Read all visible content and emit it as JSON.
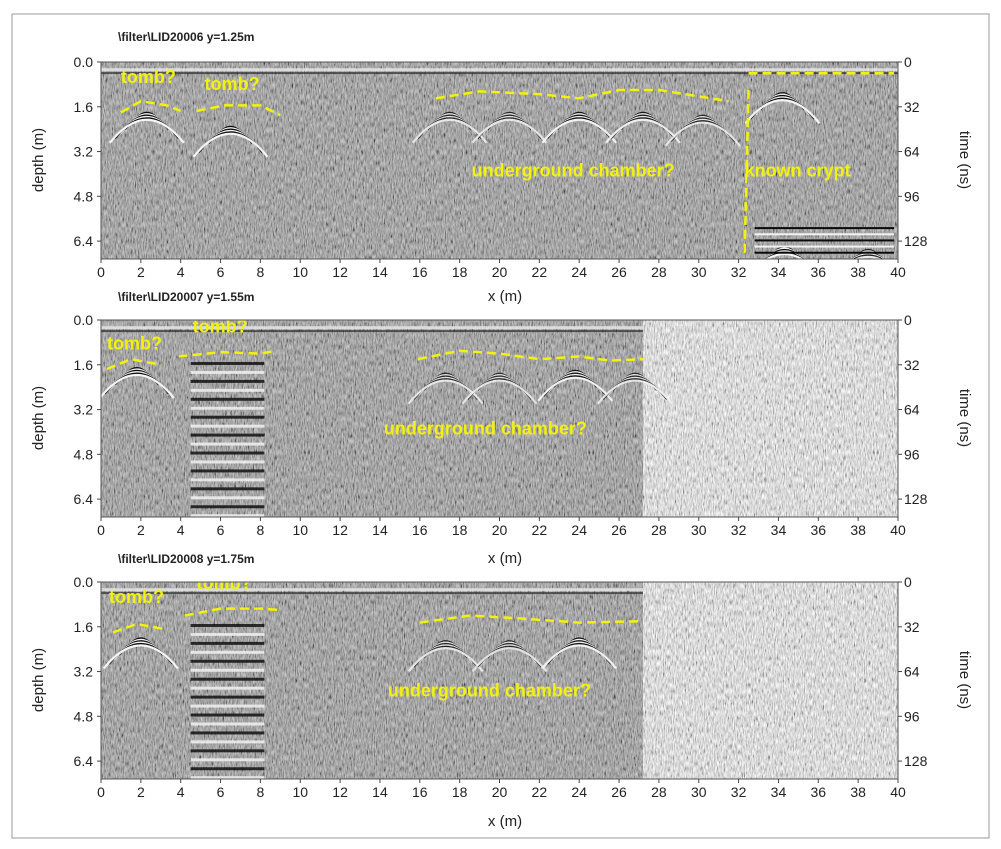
{
  "chart_data": [
    {
      "type": "heatmap",
      "title": "\\filter\\LID20006 y=1.25m",
      "xlabel": "x (m)",
      "ylabel": "depth (m)",
      "y2label": "time (ns)",
      "xlim": [
        0,
        40
      ],
      "ylim": [
        0,
        7.04
      ],
      "x_ticks": [
        "0",
        "2",
        "4",
        "6",
        "8",
        "10",
        "12",
        "14",
        "16",
        "18",
        "20",
        "22",
        "24",
        "26",
        "28",
        "30",
        "32",
        "34",
        "36",
        "38",
        "40"
      ],
      "y_ticks": [
        "0.0",
        "1.6",
        "3.2",
        "4.8",
        "6.4"
      ],
      "y2_ticks": [
        "0",
        "32",
        "64",
        "96",
        "128"
      ],
      "data_extent_x": 40,
      "annotations": [
        {
          "text": "tomb?",
          "x": 1.0,
          "depth": 0.75
        },
        {
          "text": "tomb?",
          "x": 5.2,
          "depth": 1.0
        },
        {
          "text": "underground chamber?",
          "x": 18.6,
          "depth": 4.1
        },
        {
          "text": "known crypt",
          "x": 32.3,
          "depth": 4.1
        }
      ],
      "interpretation_lines": [
        {
          "name": "tomb-1-outline",
          "points": [
            [
              1.0,
              1.8
            ],
            [
              2.0,
              1.4
            ],
            [
              3.3,
              1.55
            ],
            [
              4.0,
              1.75
            ]
          ]
        },
        {
          "name": "tomb-2-outline",
          "points": [
            [
              4.8,
              1.75
            ],
            [
              6.2,
              1.55
            ],
            [
              8.0,
              1.55
            ],
            [
              9.0,
              1.9
            ]
          ]
        },
        {
          "name": "chamber-outline",
          "points": [
            [
              16.8,
              1.3
            ],
            [
              19.0,
              1.05
            ],
            [
              22.0,
              1.15
            ],
            [
              24.0,
              1.3
            ],
            [
              26.0,
              1.0
            ],
            [
              28.0,
              1.0
            ],
            [
              31.5,
              1.4
            ]
          ]
        },
        {
          "name": "crypt-wall",
          "points": [
            [
              32.5,
              1.0
            ],
            [
              32.3,
              6.9
            ]
          ]
        },
        {
          "name": "crypt-top",
          "points": [
            [
              32.5,
              0.4
            ],
            [
              39.8,
              0.4
            ]
          ]
        }
      ],
      "hyperbolas": [
        {
          "x": 2.3,
          "depth": 1.7,
          "strength": 1.0
        },
        {
          "x": 6.5,
          "depth": 2.2,
          "strength": 1.0
        },
        {
          "x": 17.5,
          "depth": 1.7,
          "strength": 0.6
        },
        {
          "x": 20.5,
          "depth": 1.7,
          "strength": 0.6
        },
        {
          "x": 24.0,
          "depth": 1.7,
          "strength": 0.9
        },
        {
          "x": 27.2,
          "depth": 1.7,
          "strength": 0.8
        },
        {
          "x": 30.2,
          "depth": 1.8,
          "strength": 0.6
        },
        {
          "x": 34.2,
          "depth": 1.0,
          "strength": 1.0
        },
        {
          "x": 34.3,
          "depth": 6.5,
          "strength": 1.0
        },
        {
          "x": 38.5,
          "depth": 6.6,
          "strength": 0.7
        }
      ],
      "colors": {
        "annotation": "#f2f20a",
        "background": "#8a8a8a"
      }
    },
    {
      "type": "heatmap",
      "title": "\\filter\\LID20007 y=1.55m",
      "xlabel": "x (m)",
      "ylabel": "depth (m)",
      "y2label": "time (ns)",
      "xlim": [
        0,
        40
      ],
      "ylim": [
        0,
        7.04
      ],
      "x_ticks": [
        "0",
        "2",
        "4",
        "6",
        "8",
        "10",
        "12",
        "14",
        "16",
        "18",
        "20",
        "22",
        "24",
        "26",
        "28",
        "30",
        "32",
        "34",
        "36",
        "38",
        "40"
      ],
      "y_ticks": [
        "0.0",
        "1.6",
        "3.2",
        "4.8",
        "6.4"
      ],
      "y2_ticks": [
        "0",
        "32",
        "64",
        "96",
        "128"
      ],
      "data_extent_x": 27.2,
      "annotations": [
        {
          "text": "tomb?",
          "x": 0.3,
          "depth": 1.05
        },
        {
          "text": "tomb?",
          "x": 4.6,
          "depth": 0.45
        },
        {
          "text": "underground chamber?",
          "x": 14.2,
          "depth": 4.1
        }
      ],
      "interpretation_lines": [
        {
          "name": "tomb-1-outline",
          "points": [
            [
              0.3,
              1.75
            ],
            [
              1.5,
              1.4
            ],
            [
              3.0,
              1.6
            ]
          ]
        },
        {
          "name": "tomb-2-outline",
          "points": [
            [
              3.9,
              1.3
            ],
            [
              6.0,
              1.15
            ],
            [
              8.0,
              1.2
            ],
            [
              8.8,
              1.1
            ]
          ]
        },
        {
          "name": "chamber-outline",
          "points": [
            [
              15.9,
              1.4
            ],
            [
              18.0,
              1.1
            ],
            [
              20.0,
              1.2
            ],
            [
              22.0,
              1.4
            ],
            [
              24.0,
              1.3
            ],
            [
              25.5,
              1.45
            ],
            [
              27.2,
              1.4
            ]
          ]
        }
      ],
      "hyperbolas": [
        {
          "x": 1.8,
          "depth": 1.6,
          "strength": 1.0
        },
        {
          "x": 17.3,
          "depth": 1.8,
          "strength": 0.6
        },
        {
          "x": 20.0,
          "depth": 1.8,
          "strength": 0.5
        },
        {
          "x": 23.8,
          "depth": 1.7,
          "strength": 0.9
        },
        {
          "x": 26.8,
          "depth": 1.8,
          "strength": 0.6
        }
      ],
      "colors": {
        "annotation": "#f2f20a",
        "background": "#8a8a8a"
      }
    },
    {
      "type": "heatmap",
      "title": "\\filter\\LID20008 y=1.75m",
      "xlabel": "x (m)",
      "ylabel": "depth (m)",
      "y2label": "time (ns)",
      "xlim": [
        0,
        40
      ],
      "ylim": [
        0,
        7.04
      ],
      "x_ticks": [
        "0",
        "2",
        "4",
        "6",
        "8",
        "10",
        "12",
        "14",
        "16",
        "18",
        "20",
        "22",
        "24",
        "26",
        "28",
        "30",
        "32",
        "34",
        "36",
        "38",
        "40"
      ],
      "y_ticks": [
        "0.0",
        "1.6",
        "3.2",
        "4.8",
        "6.4"
      ],
      "y2_ticks": [
        "0",
        "32",
        "64",
        "96",
        "128"
      ],
      "data_extent_x": 27.2,
      "annotations": [
        {
          "text": "tomb?",
          "x": 0.4,
          "depth": 0.75
        },
        {
          "text": "tomb?",
          "x": 4.8,
          "depth": 0.25
        },
        {
          "text": "underground chamber?",
          "x": 14.4,
          "depth": 4.1
        }
      ],
      "interpretation_lines": [
        {
          "name": "tomb-1-outline",
          "points": [
            [
              0.6,
              1.8
            ],
            [
              1.8,
              1.5
            ],
            [
              3.3,
              1.7
            ]
          ]
        },
        {
          "name": "tomb-2-outline",
          "points": [
            [
              4.2,
              1.2
            ],
            [
              6.0,
              0.95
            ],
            [
              8.0,
              0.95
            ],
            [
              9.0,
              1.0
            ]
          ]
        },
        {
          "name": "chamber-outline",
          "points": [
            [
              16.0,
              1.45
            ],
            [
              18.5,
              1.2
            ],
            [
              21.0,
              1.3
            ],
            [
              24.0,
              1.45
            ],
            [
              27.2,
              1.4
            ]
          ]
        }
      ],
      "hyperbolas": [
        {
          "x": 2.0,
          "depth": 1.9,
          "strength": 1.0
        },
        {
          "x": 17.3,
          "depth": 2.0,
          "strength": 0.6
        },
        {
          "x": 20.5,
          "depth": 2.0,
          "strength": 0.5
        },
        {
          "x": 24.0,
          "depth": 1.9,
          "strength": 0.9
        }
      ],
      "colors": {
        "annotation": "#f2f20a",
        "background": "#8a8a8a"
      }
    }
  ]
}
